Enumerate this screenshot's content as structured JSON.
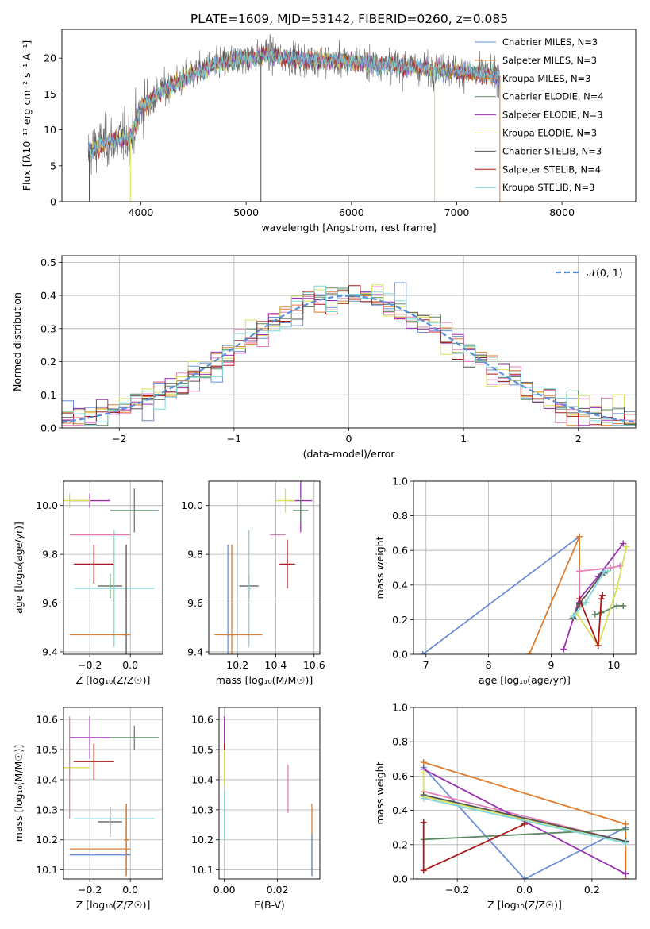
{
  "title": "PLATE=1609, MJD=53142, FIBERID=0260, z=0.085",
  "colors": {
    "chab_miles": "#6a8fd8",
    "salp_miles": "#e07c2c",
    "krou_miles": "#e07c2c",
    "chab_elodie": "#5b8a62",
    "salp_elodie": "#9c30b0",
    "krou_elodie": "#d9e05a",
    "chab_stelib": "#555555",
    "salp_stelib": "#aa1a1a",
    "krou_stelib": "#7fd8d8",
    "pink": "#e67fb8",
    "norm": "#5b8fd8"
  },
  "chart_data": [
    {
      "id": "spectrum",
      "type": "line",
      "xlabel": "wavelength [Angstrom, rest frame]",
      "ylabel": "Flux [fλ10⁻¹⁷ erg cm⁻² s⁻¹ A⁻¹]",
      "xlim": [
        3250,
        8700
      ],
      "ylim": [
        0,
        24
      ],
      "xticks": [
        4000,
        5000,
        6000,
        7000,
        8000
      ],
      "yticks": [
        0,
        5,
        10,
        15,
        20
      ],
      "grid": false,
      "legend": "top-right",
      "series": [
        {
          "name": "Chabrier MILES, N_SSP=3",
          "color": "#6a8fd8"
        },
        {
          "name": "Salpeter MILES, N_SSP=3",
          "color": "#e07c2c"
        },
        {
          "name": "Kroupa MILES, N_SSP=3",
          "color": "#e07c2c"
        },
        {
          "name": "Chabrier ELODIE, N_SSP=4",
          "color": "#5b8a62"
        },
        {
          "name": "Salpeter ELODIE, N_SSP=3",
          "color": "#9c30b0"
        },
        {
          "name": "Kroupa ELODIE, N_SSP=3",
          "color": "#d9e05a"
        },
        {
          "name": "Chabrier STELIB, N_SSP=3",
          "color": "#555555"
        },
        {
          "name": "Salpeter STELIB, N_SSP=4",
          "color": "#aa1a1a"
        },
        {
          "name": "Kroupa STELIB, N_SSP=3",
          "color": "#7fd8d8"
        }
      ],
      "continuum": [
        [
          3500,
          7
        ],
        [
          3700,
          8.5
        ],
        [
          3900,
          9
        ],
        [
          4000,
          13
        ],
        [
          4200,
          15.5
        ],
        [
          4400,
          17
        ],
        [
          4600,
          18.5
        ],
        [
          4800,
          19.5
        ],
        [
          5000,
          20
        ],
        [
          5200,
          20.5
        ],
        [
          5400,
          20
        ],
        [
          5600,
          19.8
        ],
        [
          5800,
          19.7
        ],
        [
          6000,
          19.5
        ],
        [
          6200,
          19.2
        ],
        [
          6400,
          19
        ],
        [
          6600,
          18.8
        ],
        [
          6800,
          18.4
        ],
        [
          7000,
          18.2
        ],
        [
          7200,
          17.8
        ],
        [
          7400,
          17.5
        ]
      ]
    },
    {
      "id": "residuals",
      "type": "histogram",
      "xlabel": "(data-model)/error",
      "ylabel": "Normed distribution",
      "xlim": [
        -2.5,
        2.5
      ],
      "ylim": [
        0,
        0.52
      ],
      "xticks": [
        -2,
        -1,
        0,
        1,
        2
      ],
      "yticks": [
        0,
        0.1,
        0.2,
        0.3,
        0.4,
        0.5
      ],
      "grid": true,
      "legend": "top-right",
      "legend_label": "𝒩(0, 1)"
    },
    {
      "id": "age_vs_Z",
      "type": "errorbar",
      "xlabel": "Z [log₁₀(Z/Z☉)]",
      "ylabel": "age  [log₁₀(age/yr)]",
      "xlim": [
        -0.33,
        0.16
      ],
      "ylim": [
        9.39,
        10.1
      ],
      "xticks": [
        -0.2,
        0.0
      ],
      "xticklabels": [
        "−0.2",
        "0.0"
      ],
      "yticks": [
        9.4,
        9.6,
        9.8,
        10.0
      ],
      "grid": true,
      "points": [
        {
          "x": 0.02,
          "y": 9.98,
          "ex": 0.12,
          "ey": 0.09,
          "c": "#5b8a62"
        },
        {
          "x": -0.2,
          "y": 10.02,
          "ex": 0.1,
          "ey": 0.03,
          "c": "#9c30b0"
        },
        {
          "x": -0.3,
          "y": 10.02,
          "ex": 0.1,
          "ey": 0.03,
          "c": "#d9e05a"
        },
        {
          "x": -0.3,
          "y": 9.88,
          "ex": 0.0,
          "ey": 0.0,
          "c": "#e67fb8",
          "x1": -0.3,
          "x2": 0.0
        },
        {
          "x": -0.18,
          "y": 9.76,
          "ex": 0.1,
          "ey": 0.08,
          "c": "#aa1a1a"
        },
        {
          "x": -0.1,
          "y": 9.67,
          "ex": 0.06,
          "ey": 0.05,
          "c": "#555555"
        },
        {
          "x": -0.1,
          "y": 9.67,
          "ex": 0.01,
          "ey": 0.05,
          "c": "#5b8a62"
        },
        {
          "x": -0.08,
          "y": 9.66,
          "ex": 0.2,
          "ey": 0.24,
          "c": "#7fd8d8"
        },
        {
          "x": -0.02,
          "y": 9.47,
          "ex": 0.02,
          "ey": 0.37,
          "c": "#555555"
        },
        {
          "x": -0.3,
          "y": 9.47,
          "ex": 0.3,
          "ey": 0.0,
          "c": "#e07c2c",
          "x1": -0.3,
          "x2": 0.0
        }
      ]
    },
    {
      "id": "age_vs_mass",
      "type": "errorbar",
      "xlabel": "mass [log₁₀(M/M☉)]",
      "ylabel": "",
      "xlim": [
        10.05,
        10.63
      ],
      "ylim": [
        9.39,
        10.1
      ],
      "xticks": [
        10.2,
        10.4,
        10.6
      ],
      "xticklabels": [
        "10.2",
        "10.4",
        "10.6"
      ],
      "yticks": [
        9.4,
        9.6,
        9.8,
        10.0
      ],
      "grid": true,
      "points": [
        {
          "x": 10.53,
          "y": 10.02,
          "ex": 0.06,
          "ey": 0.13,
          "c": "#9c30b0"
        },
        {
          "x": 10.45,
          "y": 10.02,
          "ex": 0.05,
          "ey": 0.05,
          "c": "#d9e05a"
        },
        {
          "x": 10.53,
          "y": 9.98,
          "ex": 0.04,
          "ey": 0.05,
          "c": "#5b8a62"
        },
        {
          "x": 10.46,
          "y": 9.76,
          "ex": 0.04,
          "ey": 0.1,
          "c": "#aa1a1a"
        },
        {
          "x": 10.41,
          "y": 9.88,
          "ex": 0.04,
          "ey": 0.0,
          "c": "#e67fb8"
        },
        {
          "x": 10.26,
          "y": 9.67,
          "ex": 0.05,
          "ey": 0.05,
          "c": "#555555"
        },
        {
          "x": 10.26,
          "y": 9.66,
          "ex": 0.01,
          "ey": 0.24,
          "c": "#7fd8d8"
        },
        {
          "x": 10.17,
          "y": 9.47,
          "ex": 0.02,
          "ey": 0.37,
          "c": "#e07c2c"
        },
        {
          "x": 10.15,
          "y": 9.47,
          "ex": 0.02,
          "ey": 0.37,
          "c": "#6a8fd8"
        },
        {
          "x": 10.17,
          "y": 9.47,
          "ex": 0.1,
          "ey": 0.0,
          "c": "#e07c2c",
          "x1": 10.08,
          "x2": 10.33
        }
      ]
    },
    {
      "id": "mw_vs_age",
      "type": "line",
      "xlabel": "age  [log₁₀(age/yr)]",
      "ylabel": "mass weight",
      "xlim": [
        6.8,
        10.35
      ],
      "ylim": [
        0,
        1.0
      ],
      "xticks": [
        7,
        8,
        9,
        10
      ],
      "yticks": [
        0,
        0.2,
        0.4,
        0.6,
        0.8,
        1.0
      ],
      "grid": true,
      "series": [
        {
          "c": "#6a8fd8",
          "pts": [
            [
              6.95,
              0.0
            ],
            [
              9.45,
              0.68
            ],
            [
              9.45,
              0.3
            ]
          ]
        },
        {
          "c": "#e07c2c",
          "pts": [
            [
              8.65,
              0.0
            ],
            [
              9.45,
              0.68
            ],
            [
              9.45,
              0.28
            ]
          ]
        },
        {
          "c": "#e67fb8",
          "pts": [
            [
              9.45,
              0.3
            ],
            [
              9.45,
              0.48
            ],
            [
              9.95,
              0.5
            ],
            [
              10.1,
              0.51
            ]
          ]
        },
        {
          "c": "#9c30b0",
          "pts": [
            [
              9.2,
              0.03
            ],
            [
              9.45,
              0.32
            ],
            [
              9.75,
              0.45
            ],
            [
              10.15,
              0.64
            ]
          ]
        },
        {
          "c": "#5b8a62",
          "pts": [
            [
              9.7,
              0.23
            ],
            [
              9.8,
              0.24
            ],
            [
              10.05,
              0.28
            ],
            [
              10.15,
              0.28
            ]
          ]
        },
        {
          "c": "#d9e05a",
          "pts": [
            [
              9.4,
              0.24
            ],
            [
              9.75,
              0.05
            ],
            [
              10.05,
              0.38
            ],
            [
              10.2,
              0.62
            ]
          ]
        },
        {
          "c": "#555555",
          "pts": [
            [
              9.35,
              0.21
            ],
            [
              9.45,
              0.29
            ],
            [
              9.8,
              0.46
            ],
            [
              9.85,
              0.47
            ]
          ]
        },
        {
          "c": "#7fd8d8",
          "pts": [
            [
              9.35,
              0.22
            ],
            [
              9.55,
              0.3
            ],
            [
              9.85,
              0.48
            ],
            [
              9.9,
              0.48
            ]
          ]
        },
        {
          "c": "#aa1a1a",
          "pts": [
            [
              9.45,
              0.32
            ],
            [
              9.75,
              0.05
            ],
            [
              9.8,
              0.32
            ],
            [
              9.82,
              0.34
            ]
          ]
        }
      ]
    },
    {
      "id": "mass_vs_Z",
      "type": "errorbar",
      "xlabel": "Z [log₁₀(Z/Z☉)]",
      "ylabel": "mass [log₁₀(M/M☉)]",
      "xlim": [
        -0.33,
        0.16
      ],
      "ylim": [
        10.07,
        10.64
      ],
      "xticks": [
        -0.2,
        0.0
      ],
      "xticklabels": [
        "−0.2",
        "0.0"
      ],
      "yticks": [
        10.1,
        10.2,
        10.3,
        10.4,
        10.5,
        10.6
      ],
      "grid": true,
      "points": [
        {
          "x": -0.2,
          "y": 10.54,
          "ex": 0.1,
          "ey": 0.07,
          "c": "#9c30b0"
        },
        {
          "x": 0.02,
          "y": 10.54,
          "ex": 0.12,
          "ey": 0.04,
          "c": "#5b8a62"
        },
        {
          "x": -0.18,
          "y": 10.46,
          "ex": 0.1,
          "ey": 0.06,
          "c": "#aa1a1a"
        },
        {
          "x": -0.3,
          "y": 10.44,
          "ex": 0.1,
          "ey": 0.06,
          "c": "#d9e05a"
        },
        {
          "x": -0.3,
          "y": 10.44,
          "ex": 0.0,
          "ey": 0.17,
          "c": "#e67fb8"
        },
        {
          "x": -0.1,
          "y": 10.26,
          "ex": 0.06,
          "ey": 0.05,
          "c": "#555555"
        },
        {
          "x": -0.08,
          "y": 10.27,
          "ex": 0.2,
          "ey": 0.0,
          "c": "#7fd8d8"
        },
        {
          "x": -0.02,
          "y": 10.2,
          "ex": 0.01,
          "ey": 0.12,
          "c": "#555555"
        },
        {
          "x": -0.02,
          "y": 10.2,
          "ex": 0.01,
          "ey": 0.12,
          "c": "#e07c2c"
        },
        {
          "x": -0.15,
          "y": 10.17,
          "ex": 0.15,
          "ey": 0.0,
          "c": "#e07c2c"
        },
        {
          "x": -0.15,
          "y": 10.15,
          "ex": 0.15,
          "ey": 0.0,
          "c": "#6a8fd8"
        }
      ]
    },
    {
      "id": "mass_vs_ebv",
      "type": "errorbar",
      "xlabel": "E(B-V)",
      "ylabel": "",
      "xlim": [
        -0.002,
        0.036
      ],
      "ylim": [
        10.07,
        10.64
      ],
      "xticks": [
        0.0,
        0.02
      ],
      "xticklabels": [
        "0.00",
        "0.02"
      ],
      "yticks": [
        10.1,
        10.2,
        10.3,
        10.4,
        10.5,
        10.6
      ],
      "grid": true,
      "points": [
        {
          "x": 0.0,
          "y": 10.54,
          "ex": 0.0,
          "ey": 0.07,
          "c": "#9c30b0"
        },
        {
          "x": 0.0,
          "y": 10.46,
          "ex": 0.0,
          "ey": 0.06,
          "c": "#aa1a1a"
        },
        {
          "x": 0.0,
          "y": 10.44,
          "ex": 0.0,
          "ey": 0.06,
          "c": "#d9e05a"
        },
        {
          "x": 0.0,
          "y": 10.28,
          "ex": 0.0,
          "ey": 0.08,
          "c": "#7fd8d8"
        },
        {
          "x": 0.024,
          "y": 10.37,
          "ex": 0.0,
          "ey": 0.08,
          "c": "#e67fb8"
        },
        {
          "x": 0.033,
          "y": 10.2,
          "ex": 0.0,
          "ey": 0.12,
          "c": "#e07c2c"
        },
        {
          "x": 0.033,
          "y": 10.15,
          "ex": 0.0,
          "ey": 0.07,
          "c": "#6a8fd8"
        }
      ]
    },
    {
      "id": "mw_vs_Z",
      "type": "line",
      "xlabel": "Z [log₁₀(Z/Z☉)]",
      "ylabel": "mass weight",
      "xlim": [
        -0.33,
        0.33
      ],
      "ylim": [
        0,
        1.0
      ],
      "xticks": [
        -0.2,
        0.0,
        0.2
      ],
      "xticklabels": [
        "−0.2",
        "0.0",
        "0.2"
      ],
      "yticks": [
        0,
        0.2,
        0.4,
        0.6,
        0.8,
        1.0
      ],
      "grid": true,
      "series": [
        {
          "c": "#6a8fd8",
          "pts": [
            [
              -0.3,
              0.65
            ],
            [
              0.0,
              0.0
            ],
            [
              0.3,
              0.3
            ]
          ]
        },
        {
          "c": "#e07c2c",
          "pts": [
            [
              -0.3,
              0.68
            ],
            [
              0.3,
              0.32
            ],
            [
              0.3,
              0.0
            ]
          ]
        },
        {
          "c": "#e67fb8",
          "pts": [
            [
              -0.3,
              0.51
            ],
            [
              0.3,
              0.22
            ]
          ]
        },
        {
          "c": "#9c30b0",
          "pts": [
            [
              -0.3,
              0.64
            ],
            [
              0.3,
              0.03
            ]
          ]
        },
        {
          "c": "#5b8a62",
          "pts": [
            [
              -0.3,
              0.23
            ],
            [
              0.3,
              0.29
            ]
          ]
        },
        {
          "c": "#d9e05a",
          "pts": [
            [
              -0.3,
              0.62
            ],
            [
              -0.3,
              0.48
            ],
            [
              0.3,
              0.22
            ]
          ]
        },
        {
          "c": "#555555",
          "pts": [
            [
              -0.3,
              0.49
            ],
            [
              0.3,
              0.22
            ]
          ]
        },
        {
          "c": "#7fd8d8",
          "pts": [
            [
              -0.3,
              0.47
            ],
            [
              0.3,
              0.21
            ]
          ]
        },
        {
          "c": "#aa1a1a",
          "pts": [
            [
              -0.3,
              0.33
            ],
            [
              -0.3,
              0.05
            ],
            [
              0.0,
              0.32
            ]
          ]
        }
      ]
    }
  ]
}
